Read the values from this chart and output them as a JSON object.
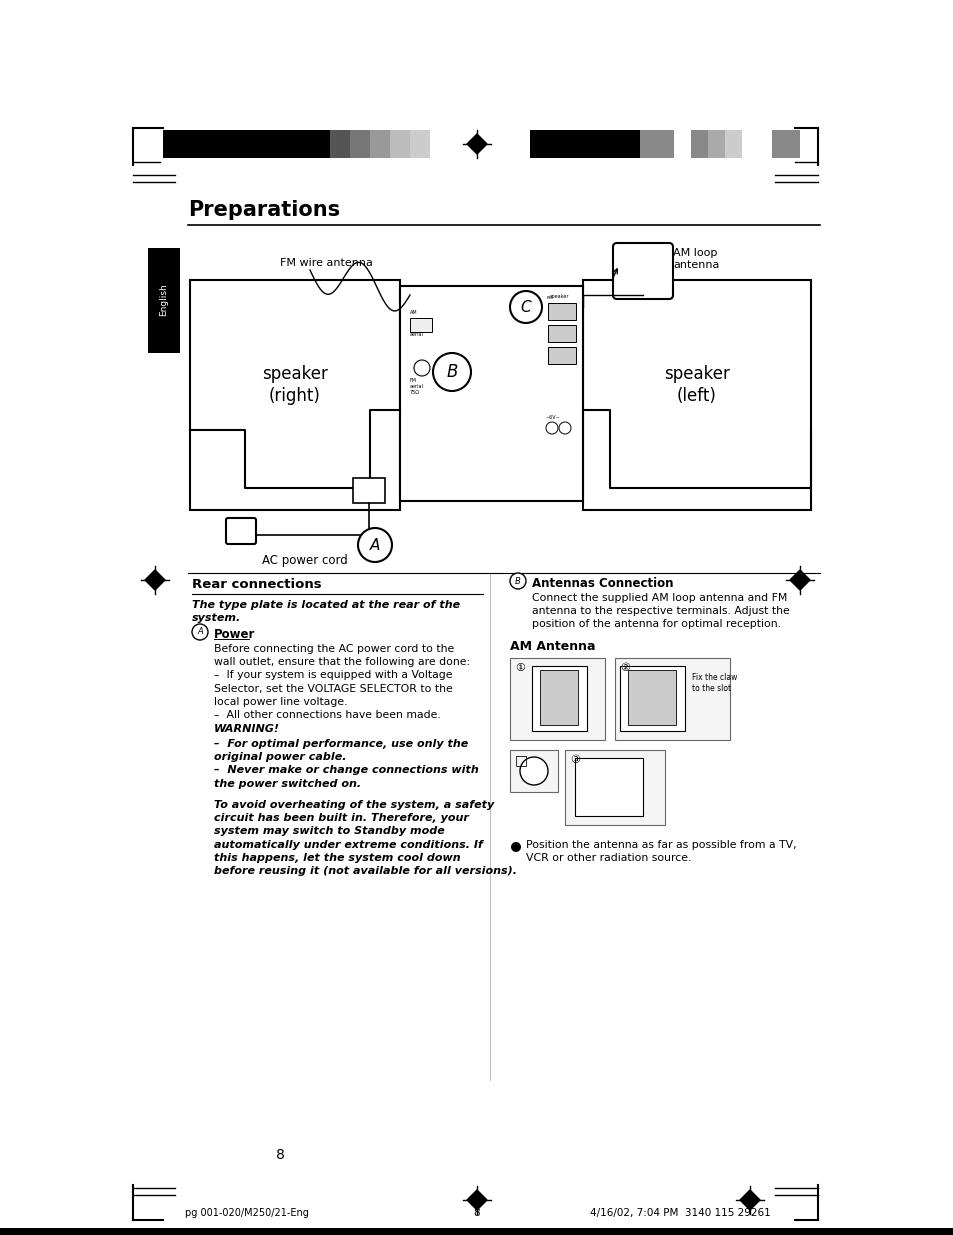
{
  "bg_color": "#ffffff",
  "page_title": "Preparations",
  "section_title": "Rear connections",
  "page_number": "8",
  "footer_left": "pg 001-020/M250/21-Eng",
  "footer_center_page": "8",
  "footer_right": "4/16/02, 7:04 PM  3140 115 29261",
  "english_tab_text": "English",
  "left_col_subtitle": "The type plate is located at the rear of the\nsystem.",
  "section_A_title": "Power",
  "section_A_body": "Before connecting the AC power cord to the\nwall outlet, ensure that the following are done:\n–  If your system is equipped with a Voltage\nSelector, set the VOLTAGE SELECTOR to the\nlocal power line voltage.\n–  All other connections have been made.",
  "warning_title": "WARNING!",
  "warning_body": "–  For optimal performance, use only the\noriginal power cable.\n–  Never make or change connections with\nthe power switched on.",
  "italic_warning": "To avoid overheating of the system, a safety\ncircuit has been built in. Therefore, your\nsystem may switch to Standby mode\nautomatically under extreme conditions. If\nthis happens, let the system cool down\nbefore reusing it (not available for all versions).",
  "section_B_title": "Antennas Connection",
  "section_B_body": "Connect the supplied AM loop antenna and FM\nantenna to the respective terminals. Adjust the\nposition of the antenna for optimal reception.",
  "am_antenna_subtitle": "AM Antenna",
  "fix_claw_text": "Fix the claw\nto the slot",
  "bullet_text": "Position the antenna as far as possible from a TV,\nVCR or other radiation source.",
  "fm_wire_label": "FM wire antenna",
  "am_loop_label": "AM loop\nantenna",
  "ac_power_label": "AC power cord",
  "speaker_right": "speaker\n(right)",
  "speaker_left": "speaker\n(left)"
}
